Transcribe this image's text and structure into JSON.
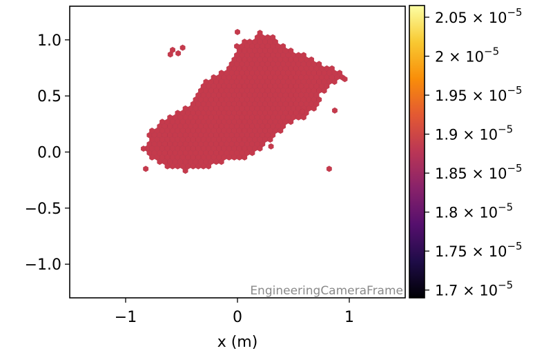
{
  "chart_data": {
    "type": "heatmap",
    "title": "",
    "xlabel": "x  (m)",
    "ylabel": "",
    "xlim": [
      -1.5,
      1.5
    ],
    "ylim": [
      -1.3,
      1.3
    ],
    "x_ticks": [
      -1,
      0,
      1
    ],
    "x_tick_labels": [
      "−1",
      "0",
      "1"
    ],
    "y_ticks": [
      1.0,
      0.5,
      0.0,
      -0.5,
      -1.0
    ],
    "y_tick_labels": [
      "1.0",
      "0.5",
      "0.0",
      "−0.5",
      "−1.0"
    ],
    "frame_label": "EngineeringCameraFrame",
    "cell_value": 1.87e-05,
    "cell_color": "#c53a4c",
    "region_outline": [
      [
        -0.85,
        0.02
      ],
      [
        -0.78,
        0.18
      ],
      [
        -0.6,
        0.33
      ],
      [
        -0.48,
        0.37
      ],
      [
        -0.3,
        0.62
      ],
      [
        -0.08,
        0.76
      ],
      [
        0.0,
        0.97
      ],
      [
        0.1,
        1.0
      ],
      [
        0.2,
        1.07
      ],
      [
        0.32,
        1.03
      ],
      [
        0.45,
        0.93
      ],
      [
        0.58,
        0.87
      ],
      [
        0.7,
        0.82
      ],
      [
        0.8,
        0.76
      ],
      [
        0.92,
        0.72
      ],
      [
        0.98,
        0.66
      ],
      [
        0.85,
        0.6
      ],
      [
        0.75,
        0.52
      ],
      [
        0.7,
        0.38
      ],
      [
        0.62,
        0.32
      ],
      [
        0.5,
        0.27
      ],
      [
        0.38,
        0.18
      ],
      [
        0.27,
        0.08
      ],
      [
        0.17,
        0.0
      ],
      [
        0.05,
        -0.06
      ],
      [
        -0.08,
        -0.07
      ],
      [
        -0.22,
        -0.12
      ],
      [
        -0.36,
        -0.15
      ],
      [
        -0.48,
        -0.17
      ],
      [
        -0.62,
        -0.14
      ],
      [
        -0.72,
        -0.1
      ],
      [
        -0.8,
        -0.05
      ]
    ],
    "isolated_cells": [
      [
        -0.58,
        0.91
      ],
      [
        -0.53,
        0.88
      ],
      [
        -0.49,
        0.93
      ],
      [
        -0.6,
        0.87
      ],
      [
        0.0,
        1.07
      ],
      [
        0.82,
        -0.15
      ],
      [
        0.96,
        0.65
      ],
      [
        0.87,
        0.37
      ],
      [
        -0.82,
        -0.15
      ],
      [
        -0.84,
        0.03
      ],
      [
        0.58,
        0.36
      ],
      [
        0.3,
        0.05
      ]
    ],
    "colorbar": {
      "cmap": "inferno",
      "range": [
        1.69e-05,
        2.065e-05
      ],
      "ticks": [
        1.7e-05,
        1.75e-05,
        1.8e-05,
        1.85e-05,
        1.9e-05,
        1.95e-05,
        2e-05,
        2.05e-05
      ],
      "tick_mantissas": [
        "1.7",
        "1.75",
        "1.8",
        "1.85",
        "1.9",
        "1.95",
        "2",
        "2.05"
      ],
      "tick_exponent": "−5",
      "tick_base": "10",
      "times": "×",
      "stops": [
        "#000004",
        "#1f0c48",
        "#550f6d",
        "#88226a",
        "#ba3655",
        "#e35933",
        "#f98e09",
        "#f8c932",
        "#fcffa4"
      ]
    }
  }
}
